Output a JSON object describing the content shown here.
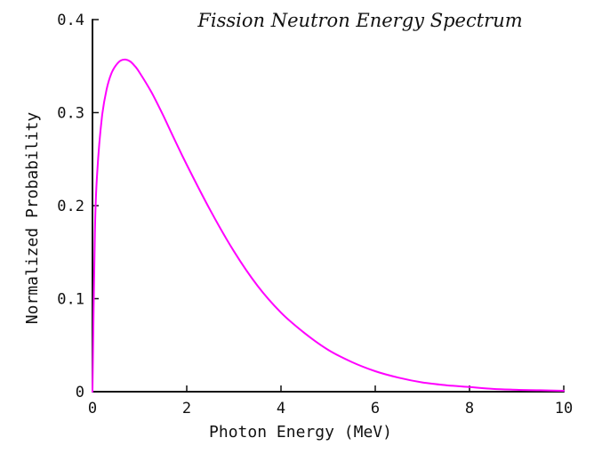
{
  "chart_data": {
    "type": "line",
    "title": "Fission Neutron Energy Spectrum",
    "xlabel": "Photon Energy (MeV)",
    "ylabel": "Normalized Probability",
    "xlim": [
      0,
      10
    ],
    "ylim": [
      0,
      0.4
    ],
    "xticks": [
      0,
      2,
      4,
      6,
      8,
      10
    ],
    "xtick_labels": [
      "0",
      "2",
      "4",
      "6",
      "8",
      "10"
    ],
    "yticks": [
      0,
      0.1,
      0.2,
      0.3,
      0.4
    ],
    "ytick_labels": [
      "0",
      "0.1",
      "0.2",
      "0.3",
      "0.4"
    ],
    "grid": false,
    "legend": "none",
    "series": [
      {
        "color": "#ff00ff",
        "x": [
          0,
          0.05,
          0.1,
          0.2,
          0.3,
          0.4,
          0.5,
          0.6,
          0.7,
          0.8,
          0.9,
          1.0,
          1.25,
          1.5,
          1.75,
          2.0,
          2.5,
          3.0,
          3.5,
          4.0,
          4.5,
          5.0,
          5.5,
          6.0,
          6.5,
          7.0,
          7.5,
          8.0,
          8.5,
          9.0,
          9.5,
          10.0
        ],
        "y": [
          0,
          0.17,
          0.235,
          0.295,
          0.325,
          0.342,
          0.351,
          0.356,
          0.357,
          0.355,
          0.35,
          0.343,
          0.322,
          0.297,
          0.27,
          0.244,
          0.195,
          0.151,
          0.114,
          0.085,
          0.063,
          0.045,
          0.032,
          0.022,
          0.015,
          0.01,
          0.007,
          0.005,
          0.003,
          0.002,
          0.0015,
          0.001
        ]
      }
    ]
  }
}
